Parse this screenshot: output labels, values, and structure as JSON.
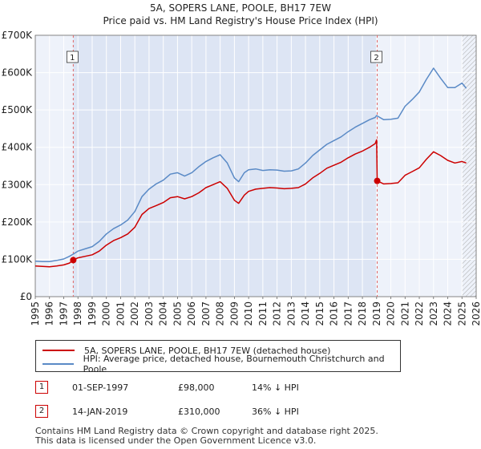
{
  "chart_data": {
    "type": "line",
    "title": "5A, SOPERS LANE, POOLE, BH17 7EW",
    "subtitle": "Price paid vs. HM Land Registry's House Price Index (HPI)",
    "xlabel": "",
    "ylabel": "",
    "xlim": [
      1995.0,
      2026.0
    ],
    "ylim": [
      0,
      700000
    ],
    "y_ticks": [
      {
        "value": 0,
        "label": "£0"
      },
      {
        "value": 100000,
        "label": "£100K"
      },
      {
        "value": 200000,
        "label": "£200K"
      },
      {
        "value": 300000,
        "label": "£300K"
      },
      {
        "value": 400000,
        "label": "£400K"
      },
      {
        "value": 500000,
        "label": "£500K"
      },
      {
        "value": 600000,
        "label": "£600K"
      },
      {
        "value": 700000,
        "label": "£700K"
      }
    ],
    "x_ticks": [
      "1995",
      "1996",
      "1997",
      "1998",
      "1999",
      "2000",
      "2001",
      "2002",
      "2003",
      "2004",
      "2005",
      "2006",
      "2007",
      "2008",
      "2009",
      "2010",
      "2011",
      "2012",
      "2013",
      "2014",
      "2015",
      "2016",
      "2017",
      "2018",
      "2019",
      "2020",
      "2021",
      "2022",
      "2023",
      "2024",
      "2025",
      "2026"
    ],
    "grid": true,
    "forecast_start": 2025.0,
    "sale_regions": [
      [
        1997.67,
        2019.04
      ]
    ],
    "series": [
      {
        "name": "5A, SOPERS LANE, POOLE, BH17 7EW (detached house)",
        "color": "#cc0000",
        "x": [
          1995.0,
          1995.5,
          1996.0,
          1996.5,
          1997.0,
          1997.4,
          1997.67,
          1998.0,
          1998.5,
          1999.0,
          1999.5,
          2000.0,
          2000.5,
          2001.0,
          2001.5,
          2002.0,
          2002.5,
          2003.0,
          2003.5,
          2004.0,
          2004.5,
          2005.0,
          2005.5,
          2006.0,
          2006.5,
          2007.0,
          2007.5,
          2008.0,
          2008.5,
          2009.0,
          2009.3,
          2009.7,
          2010.0,
          2010.5,
          2011.0,
          2011.5,
          2012.0,
          2012.5,
          2013.0,
          2013.5,
          2014.0,
          2014.5,
          2015.0,
          2015.5,
          2016.0,
          2016.5,
          2017.0,
          2017.5,
          2018.0,
          2018.5,
          2018.9,
          2019.0,
          2019.04,
          2019.5,
          2020.0,
          2020.5,
          2021.0,
          2021.5,
          2022.0,
          2022.5,
          2023.0,
          2023.5,
          2024.0,
          2024.5,
          2025.0,
          2025.3
        ],
        "y": [
          82000,
          81000,
          80000,
          82000,
          85000,
          90000,
          98000,
          104000,
          108000,
          112000,
          122000,
          138000,
          150000,
          158000,
          168000,
          186000,
          220000,
          236000,
          244000,
          252000,
          265000,
          268000,
          262000,
          268000,
          278000,
          292000,
          300000,
          308000,
          290000,
          258000,
          250000,
          272000,
          282000,
          288000,
          290000,
          292000,
          291000,
          289000,
          290000,
          292000,
          302000,
          318000,
          330000,
          344000,
          352000,
          360000,
          372000,
          382000,
          390000,
          400000,
          410000,
          420000,
          310000,
          302000,
          303000,
          305000,
          325000,
          335000,
          345000,
          368000,
          388000,
          378000,
          365000,
          358000,
          362000,
          358000
        ]
      },
      {
        "name": "HPI: Average price, detached house, Bournemouth Christchurch and Poole",
        "color": "#5a8ac6",
        "x": [
          1995.0,
          1995.5,
          1996.0,
          1996.5,
          1997.0,
          1997.4,
          1997.67,
          1998.0,
          1998.5,
          1999.0,
          1999.5,
          2000.0,
          2000.5,
          2001.0,
          2001.5,
          2002.0,
          2002.5,
          2003.0,
          2003.5,
          2004.0,
          2004.5,
          2005.0,
          2005.5,
          2006.0,
          2006.5,
          2007.0,
          2007.5,
          2008.0,
          2008.5,
          2009.0,
          2009.3,
          2009.7,
          2010.0,
          2010.5,
          2011.0,
          2011.5,
          2012.0,
          2012.5,
          2013.0,
          2013.5,
          2014.0,
          2014.5,
          2015.0,
          2015.5,
          2016.0,
          2016.5,
          2017.0,
          2017.5,
          2018.0,
          2018.5,
          2018.9,
          2019.0,
          2019.04,
          2019.5,
          2020.0,
          2020.5,
          2021.0,
          2021.5,
          2022.0,
          2022.5,
          2023.0,
          2023.5,
          2024.0,
          2024.5,
          2025.0,
          2025.3
        ],
        "y": [
          95000,
          94000,
          94000,
          97000,
          101000,
          108000,
          114000,
          122000,
          128000,
          134000,
          148000,
          168000,
          182000,
          192000,
          205000,
          228000,
          268000,
          288000,
          302000,
          312000,
          328000,
          332000,
          323000,
          332000,
          348000,
          362000,
          372000,
          380000,
          358000,
          318000,
          308000,
          332000,
          340000,
          342000,
          338000,
          340000,
          339000,
          336000,
          337000,
          342000,
          358000,
          378000,
          393000,
          408000,
          418000,
          428000,
          442000,
          454000,
          464000,
          474000,
          480000,
          485000,
          484000,
          474000,
          475000,
          478000,
          510000,
          528000,
          548000,
          582000,
          612000,
          585000,
          560000,
          560000,
          572000,
          558000
        ]
      }
    ],
    "annotations": [
      {
        "label": "1",
        "x": 1997.67,
        "y": 98000
      },
      {
        "label": "2",
        "x": 2019.04,
        "y": 310000
      }
    ]
  },
  "legend": {
    "red_label": "5A, SOPERS LANE, POOLE, BH17 7EW (detached house)",
    "blue_label": "HPI: Average price, detached house, Bournemouth Christchurch and Poole"
  },
  "sales": [
    {
      "num": "1",
      "date": "01-SEP-1997",
      "price": "£98,000",
      "delta": "14% ↓ HPI"
    },
    {
      "num": "2",
      "date": "14-JAN-2019",
      "price": "£310,000",
      "delta": "36% ↓ HPI"
    }
  ],
  "footer": {
    "line1": "Contains HM Land Registry data © Crown copyright and database right 2025.",
    "line2": "This data is licensed under the Open Government Licence v3.0."
  }
}
